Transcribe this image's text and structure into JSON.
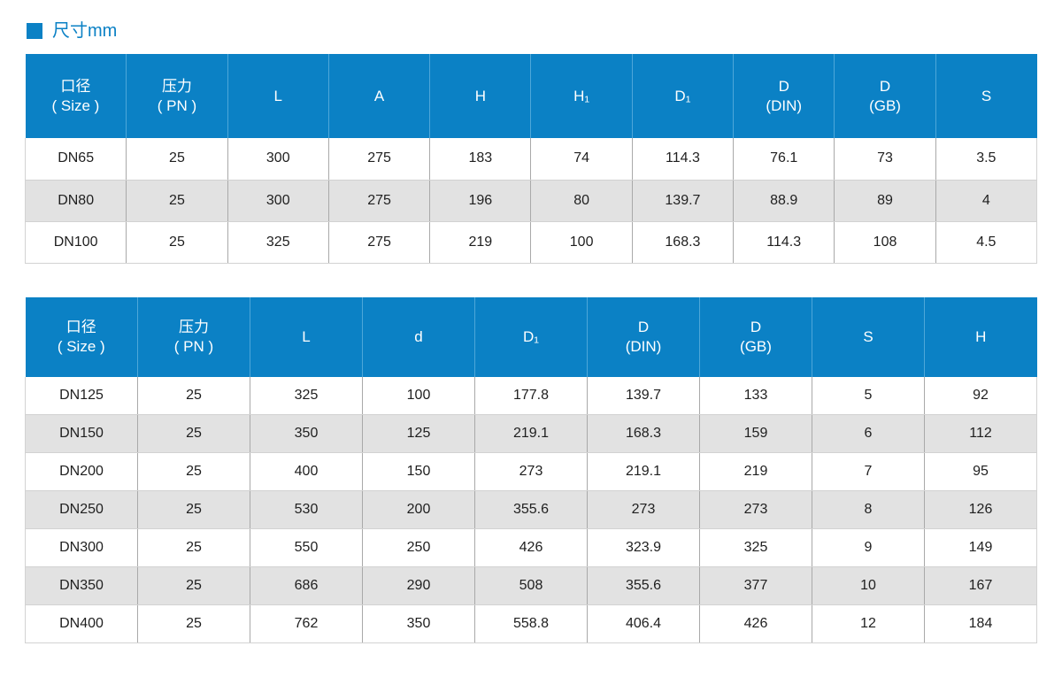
{
  "page": {
    "title": "尺寸mm"
  },
  "colors": {
    "accent": "#0b81c5",
    "header_separator": "#4ea7d9",
    "stripe_row": "#e2e2e2",
    "border_vertical": "#a9a9a9",
    "border_horizontal": "#d2d2d2",
    "body_text": "#1f1f1f",
    "header_text": "#ffffff"
  },
  "table1": {
    "headers": [
      {
        "line1": "口径",
        "line2": "( Size )"
      },
      {
        "line1": "压力",
        "line2": "( PN )"
      },
      {
        "line1": "L",
        "line2": ""
      },
      {
        "line1": "A",
        "line2": ""
      },
      {
        "line1": "H",
        "line2": ""
      },
      {
        "line1": "H₁",
        "line2": ""
      },
      {
        "line1": "D₁",
        "line2": ""
      },
      {
        "line1": "D",
        "line2": "(DIN)"
      },
      {
        "line1": "D",
        "line2": "(GB)"
      },
      {
        "line1": "S",
        "line2": ""
      }
    ],
    "rows": [
      [
        "DN65",
        "25",
        "300",
        "275",
        "183",
        "74",
        "114.3",
        "76.1",
        "73",
        "3.5"
      ],
      [
        "DN80",
        "25",
        "300",
        "275",
        "196",
        "80",
        "139.7",
        "88.9",
        "89",
        "4"
      ],
      [
        "DN100",
        "25",
        "325",
        "275",
        "219",
        "100",
        "168.3",
        "114.3",
        "108",
        "4.5"
      ]
    ]
  },
  "table2": {
    "headers": [
      {
        "line1": "口径",
        "line2": "( Size )"
      },
      {
        "line1": "压力",
        "line2": "( PN )"
      },
      {
        "line1": "L",
        "line2": ""
      },
      {
        "line1": "d",
        "line2": ""
      },
      {
        "line1": "D₁",
        "line2": ""
      },
      {
        "line1": "D",
        "line2": "(DIN)"
      },
      {
        "line1": "D",
        "line2": "(GB)"
      },
      {
        "line1": "S",
        "line2": ""
      },
      {
        "line1": "H",
        "line2": ""
      }
    ],
    "rows": [
      [
        "DN125",
        "25",
        "325",
        "100",
        "177.8",
        "139.7",
        "133",
        "5",
        "92"
      ],
      [
        "DN150",
        "25",
        "350",
        "125",
        "219.1",
        "168.3",
        "159",
        "6",
        "112"
      ],
      [
        "DN200",
        "25",
        "400",
        "150",
        "273",
        "219.1",
        "219",
        "7",
        "95"
      ],
      [
        "DN250",
        "25",
        "530",
        "200",
        "355.6",
        "273",
        "273",
        "8",
        "126"
      ],
      [
        "DN300",
        "25",
        "550",
        "250",
        "426",
        "323.9",
        "325",
        "9",
        "149"
      ],
      [
        "DN350",
        "25",
        "686",
        "290",
        "508",
        "355.6",
        "377",
        "10",
        "167"
      ],
      [
        "DN400",
        "25",
        "762",
        "350",
        "558.8",
        "406.4",
        "426",
        "12",
        "184"
      ]
    ]
  }
}
